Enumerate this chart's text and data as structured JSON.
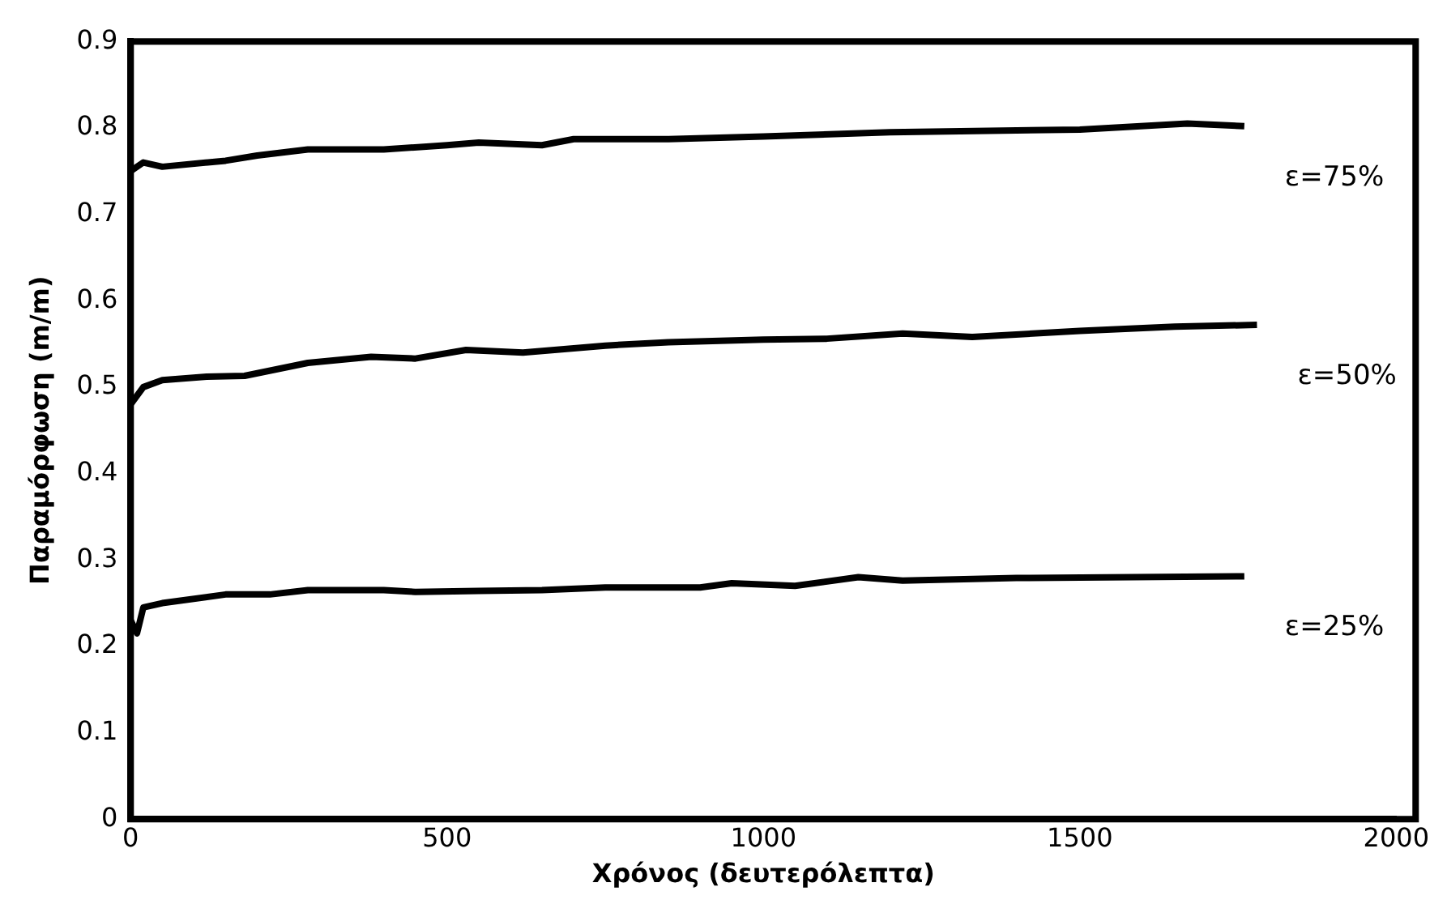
{
  "chart_data": {
    "type": "line",
    "xlabel": "Χρόνος (δευτερόλεπτα)",
    "ylabel": "Παραμόρφωση (m/m)",
    "xlim": [
      0,
      2000
    ],
    "ylim": [
      0,
      0.9
    ],
    "xticks": [
      0,
      500,
      1000,
      1500,
      2000
    ],
    "yticks": [
      0,
      0.1,
      0.2,
      0.3,
      0.4,
      0.5,
      0.6,
      0.7,
      0.8,
      0.9
    ],
    "grid": false,
    "legend": false,
    "marker": "none",
    "line_style": "solid",
    "series": [
      {
        "name": "ε=75%",
        "color": "#000000",
        "x": [
          0,
          20,
          50,
          150,
          200,
          280,
          400,
          500,
          550,
          650,
          700,
          850,
          1000,
          1200,
          1400,
          1500,
          1670,
          1760
        ],
        "values": [
          0.75,
          0.76,
          0.755,
          0.762,
          0.768,
          0.775,
          0.775,
          0.78,
          0.783,
          0.78,
          0.787,
          0.787,
          0.79,
          0.795,
          0.797,
          0.798,
          0.805,
          0.802
        ]
      },
      {
        "name": "ε=50%",
        "color": "#000000",
        "x": [
          0,
          20,
          50,
          120,
          180,
          280,
          380,
          450,
          530,
          620,
          750,
          850,
          1000,
          1100,
          1220,
          1330,
          1500,
          1650,
          1780
        ],
        "values": [
          0.48,
          0.5,
          0.508,
          0.512,
          0.513,
          0.528,
          0.535,
          0.533,
          0.543,
          0.54,
          0.548,
          0.552,
          0.555,
          0.556,
          0.562,
          0.558,
          0.565,
          0.57,
          0.572
        ]
      },
      {
        "name": "ε=25%",
        "color": "#000000",
        "x": [
          0,
          10,
          20,
          50,
          150,
          220,
          280,
          400,
          450,
          550,
          650,
          750,
          900,
          950,
          1050,
          1150,
          1220,
          1400,
          1760
        ],
        "values": [
          0.23,
          0.215,
          0.245,
          0.25,
          0.26,
          0.26,
          0.265,
          0.265,
          0.263,
          0.264,
          0.265,
          0.268,
          0.268,
          0.273,
          0.27,
          0.28,
          0.276,
          0.279,
          0.281
        ]
      }
    ]
  }
}
